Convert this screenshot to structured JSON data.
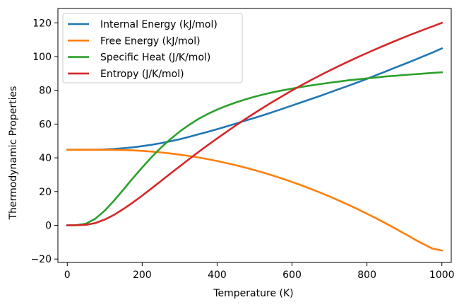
{
  "chart_data": {
    "type": "line",
    "xlabel": "Temperature (K)",
    "ylabel": "Thermodynamic Properties",
    "xlim": [
      -25,
      1025
    ],
    "ylim": [
      -22,
      128.5
    ],
    "xticks": [
      0,
      200,
      400,
      600,
      800,
      1000
    ],
    "yticks": [
      -20,
      0,
      20,
      40,
      60,
      80,
      100,
      120
    ],
    "xtick_labels": [
      "0",
      "200",
      "400",
      "600",
      "800",
      "1000"
    ],
    "ytick_labels": [
      "−20",
      "0",
      "20",
      "40",
      "60",
      "80",
      "100",
      "120"
    ],
    "grid": false,
    "legend_position": "top-left",
    "x": [
      0,
      25,
      50,
      75,
      100,
      125,
      150,
      175,
      200,
      225,
      250,
      275,
      300,
      325,
      350,
      375,
      400,
      425,
      450,
      475,
      500,
      525,
      550,
      575,
      600,
      625,
      650,
      675,
      700,
      725,
      750,
      775,
      800,
      825,
      850,
      875,
      900,
      925,
      950,
      975,
      1000
    ],
    "series": [
      {
        "name": "Internal Energy (kJ/mol)",
        "color": "#1f77b4",
        "values": [
          44.8,
          44.8,
          44.8,
          44.8,
          45.0,
          45.3,
          45.7,
          46.2,
          46.9,
          47.7,
          48.7,
          49.8,
          51.0,
          52.4,
          53.9,
          55.4,
          57.0,
          58.6,
          60.3,
          62.0,
          63.7,
          65.4,
          67.2,
          69.1,
          71.0,
          72.9,
          74.8,
          76.7,
          78.7,
          80.7,
          82.7,
          84.7,
          86.8,
          89.0,
          91.2,
          93.4,
          95.6,
          97.8,
          100.1,
          102.4,
          104.8
        ]
      },
      {
        "name": "Free Energy (kJ/mol)",
        "color": "#ff7f0e",
        "values": [
          44.8,
          44.8,
          44.8,
          44.8,
          44.8,
          44.7,
          44.6,
          44.4,
          44.1,
          43.7,
          43.2,
          42.6,
          41.9,
          41.1,
          40.2,
          39.2,
          38.1,
          36.9,
          35.6,
          34.2,
          32.7,
          31.1,
          29.4,
          27.6,
          25.7,
          23.7,
          21.6,
          19.4,
          17.1,
          14.7,
          12.2,
          9.6,
          6.9,
          4.1,
          1.2,
          -1.8,
          -4.9,
          -8.1,
          -11.0,
          -13.8,
          -14.9
        ]
      },
      {
        "name": "Specific Heat (J/K/mol)",
        "color": "#2ca02c",
        "values": [
          0.0,
          0.1,
          1.0,
          3.9,
          8.7,
          14.7,
          21.2,
          27.9,
          34.3,
          40.4,
          46.0,
          51.0,
          55.5,
          59.5,
          63.0,
          66.0,
          68.6,
          70.8,
          72.8,
          74.6,
          76.2,
          77.6,
          78.9,
          80.0,
          81.0,
          82.0,
          82.9,
          83.7,
          84.5,
          85.2,
          85.9,
          86.5,
          87.1,
          87.6,
          88.2,
          88.6,
          89.1,
          89.5,
          89.9,
          90.3,
          90.7
        ]
      },
      {
        "name": "Entropy (J/K/mol)",
        "color": "#d62728",
        "values": [
          0.0,
          0.0,
          0.3,
          1.3,
          3.4,
          6.2,
          9.7,
          13.5,
          17.6,
          21.9,
          26.2,
          30.6,
          34.9,
          39.2,
          43.4,
          47.5,
          51.5,
          55.4,
          59.2,
          62.9,
          66.5,
          70.0,
          73.4,
          76.7,
          79.9,
          83.0,
          86.0,
          88.9,
          91.7,
          94.4,
          97.0,
          99.6,
          102.1,
          104.5,
          106.9,
          109.2,
          111.5,
          113.7,
          115.8,
          117.9,
          120.0
        ]
      }
    ]
  }
}
